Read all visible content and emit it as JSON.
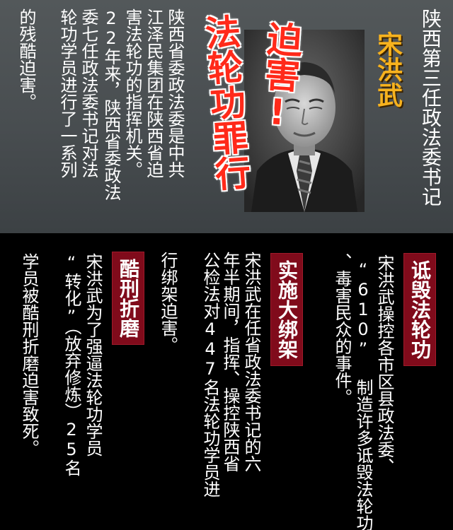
{
  "header": {
    "title": "陕西第三任政法委书记",
    "name": "宋洪武",
    "headline_1": "迫害!",
    "headline_2": "法轮功罪行"
  },
  "intro": {
    "lines": [
      "陕西省委政法委是中共",
      "江泽民集团在陕西省迫",
      "害法轮功的指挥机关。",
      "22年来，陕西省委政法",
      "委七任政法委书记对法",
      "轮功学员进行了一系列",
      "的残酷迫害。"
    ]
  },
  "sections": [
    {
      "tag": "诋毁法轮功",
      "lines": [
        "宋洪武操控各市区县政法委、",
        "“610” 制造许多诋毁法轮功",
        "、毒害民众的事件。"
      ]
    },
    {
      "tag": "实施大绑架",
      "lines": [
        "宋洪武在任省政法委书记的六",
        "年半期间，指挥、操控陕西省",
        "公检法对447名法轮功学员进",
        "行绑架迫害。"
      ]
    },
    {
      "tag": "酷刑折磨",
      "lines": [
        "宋洪武为了强逼法轮功学员",
        "“转化”（放弃修炼）25名",
        "学员被酷刑折磨迫害致死。"
      ]
    }
  ],
  "colors": {
    "top_bg": "#4e5356",
    "bottom_bg": "#000000",
    "name": "#f7b21e",
    "headline": "#ff2a1a",
    "tag_bg": "#800b1b"
  }
}
